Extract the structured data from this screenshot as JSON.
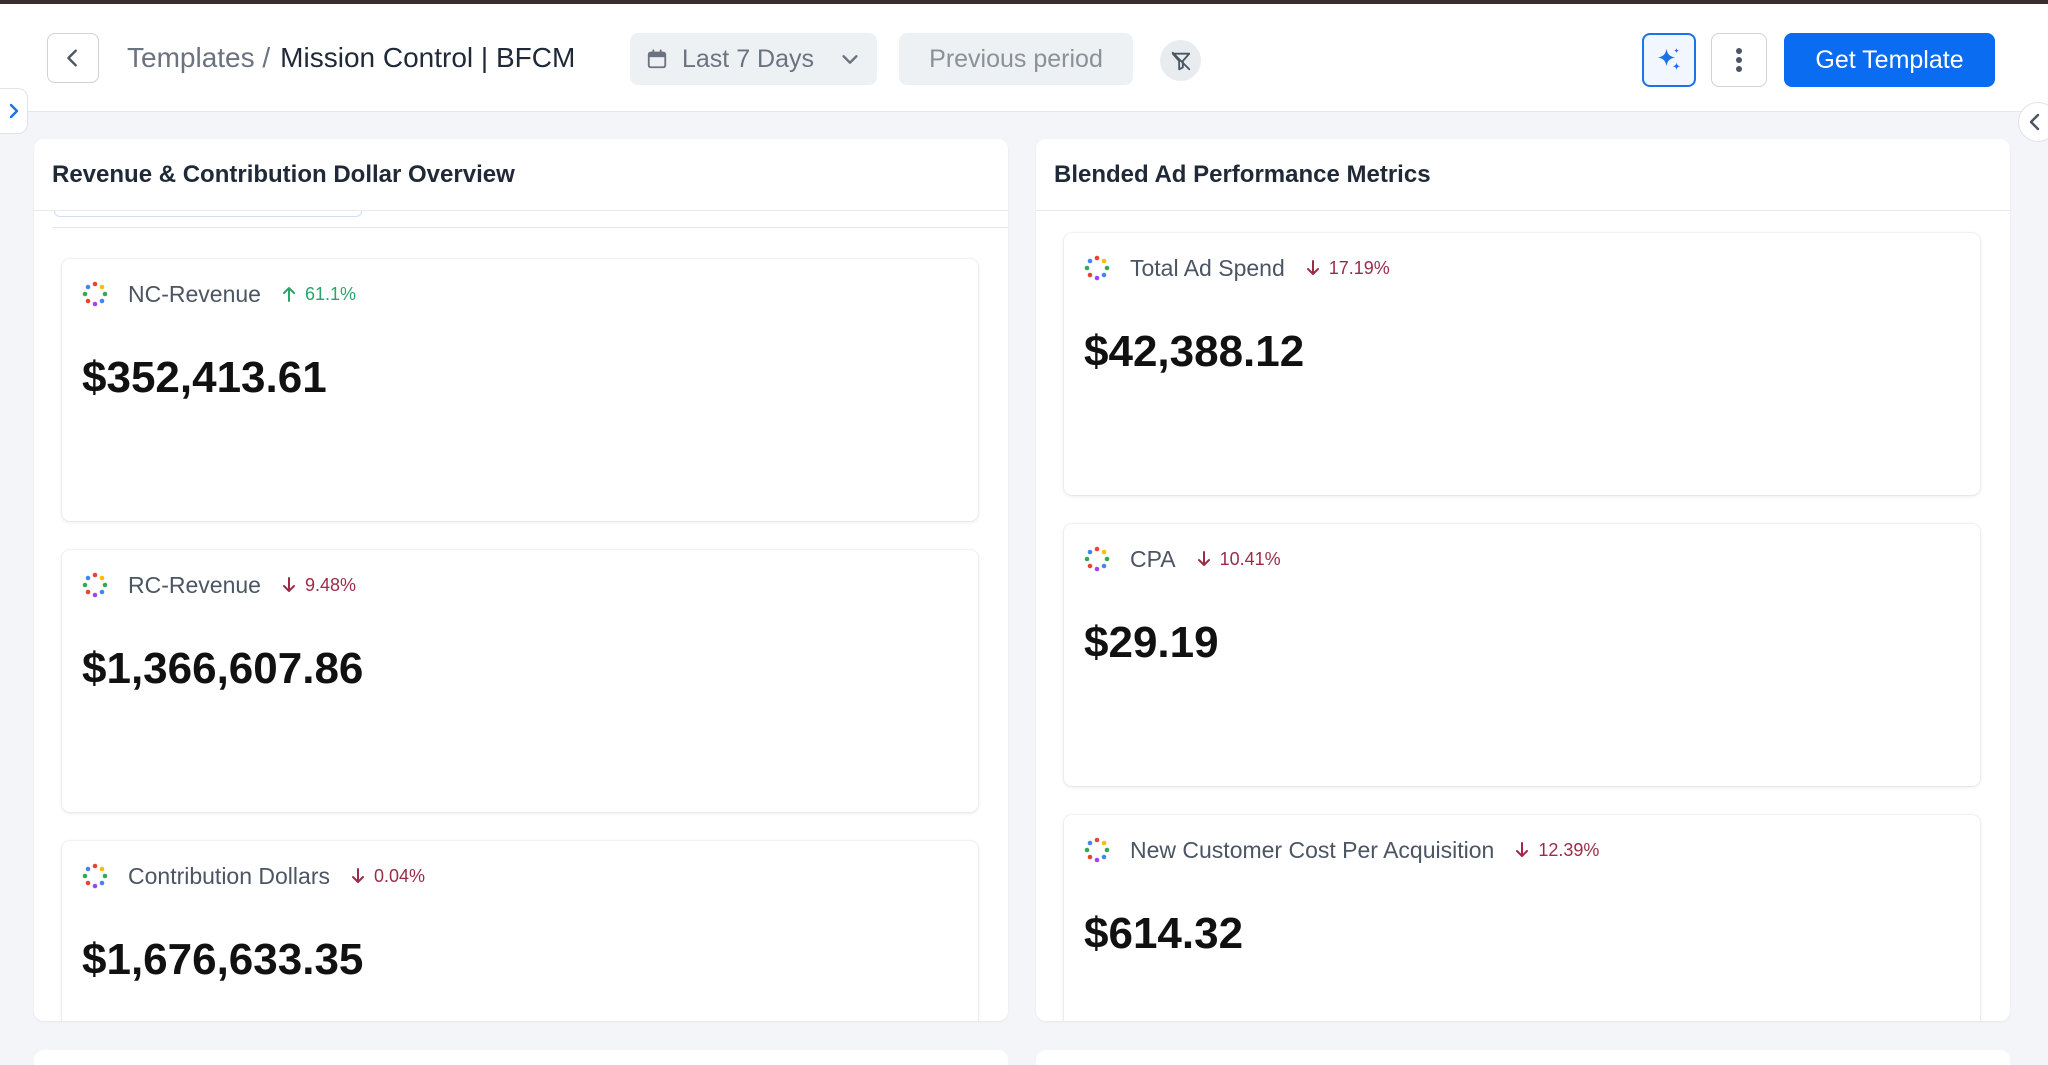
{
  "header": {
    "breadcrumb_parent": "Templates /",
    "breadcrumb_current": "Mission Control | BFCM",
    "date_range": "Last 7 Days",
    "compare_label": "Previous period",
    "get_template_label": "Get Template",
    "icons": {
      "back": "chevron-left-icon",
      "calendar": "calendar-icon",
      "date_dropdown": "chevron-down-icon",
      "filter": "filter-clear-icon",
      "ai": "sparkle-icon",
      "more": "more-vertical-icon"
    },
    "accent_color": "#0a6cf0"
  },
  "panels": [
    {
      "title": "Revenue & Contribution Dollar Overview",
      "metrics": [
        {
          "label": "NC-Revenue",
          "delta": "61.1%",
          "direction": "up",
          "value": "$352,413.61"
        },
        {
          "label": "RC-Revenue",
          "delta": "9.48%",
          "direction": "down",
          "value": "$1,366,607.86"
        },
        {
          "label": "Contribution Dollars",
          "delta": "0.04%",
          "direction": "down",
          "value": "$1,676,633.35"
        }
      ]
    },
    {
      "title": "Blended Ad Performance Metrics",
      "metrics": [
        {
          "label": "Total Ad Spend",
          "delta": "17.19%",
          "direction": "down",
          "value": "$42,388.12"
        },
        {
          "label": "CPA",
          "delta": "10.41%",
          "direction": "down",
          "value": "$29.19"
        },
        {
          "label": "New Customer Cost Per Acquisition",
          "delta": "12.39%",
          "direction": "down",
          "value": "$614.32"
        }
      ]
    }
  ],
  "colors": {
    "delta_up": "#2ba36b",
    "delta_down": "#9b2c48"
  }
}
